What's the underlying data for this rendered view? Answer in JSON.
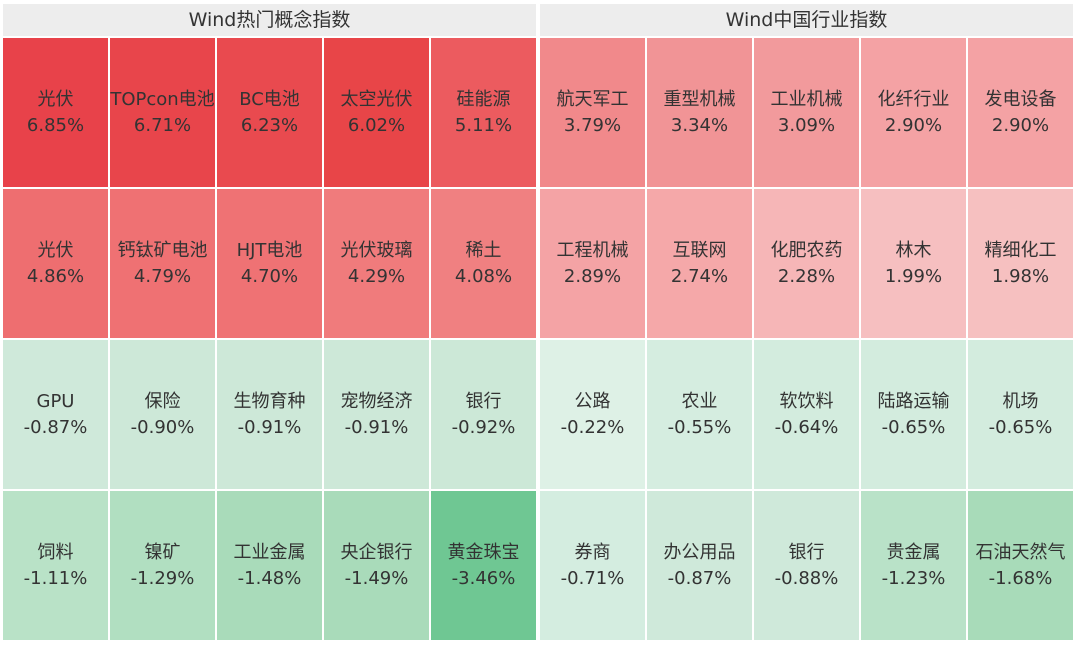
{
  "panels": [
    {
      "title": "Wind热门概念指数",
      "rows": [
        [
          {
            "name": "光伏",
            "change": "6.85%",
            "color": "#e8424a"
          },
          {
            "name": "TOPcon电池",
            "change": "6.71%",
            "color": "#e8454b"
          },
          {
            "name": "BC电池",
            "change": "6.23%",
            "color": "#e94a4f"
          },
          {
            "name": "太空光伏",
            "change": "6.02%",
            "color": "#e84548"
          },
          {
            "name": "硅能源",
            "change": "5.11%",
            "color": "#ec5b5f"
          }
        ],
        [
          {
            "name": "光伏",
            "change": "4.86%",
            "color": "#ee6e70"
          },
          {
            "name": "钙钛矿电池",
            "change": "4.79%",
            "color": "#ef7173"
          },
          {
            "name": "HJT电池",
            "change": "4.70%",
            "color": "#ef7274"
          },
          {
            "name": "光伏玻璃",
            "change": "4.29%",
            "color": "#f07b7c"
          },
          {
            "name": "稀土",
            "change": "4.08%",
            "color": "#f08081"
          }
        ],
        [
          {
            "name": "GPU",
            "change": "-0.87%",
            "color": "#cfe9da"
          },
          {
            "name": "保险",
            "change": "-0.90%",
            "color": "#cde8d8"
          },
          {
            "name": "生物育种",
            "change": "-0.91%",
            "color": "#cde8d8"
          },
          {
            "name": "宠物经济",
            "change": "-0.91%",
            "color": "#cde8d8"
          },
          {
            "name": "银行",
            "change": "-0.92%",
            "color": "#cce8d7"
          }
        ],
        [
          {
            "name": "饲料",
            "change": "-1.11%",
            "color": "#b9e2c7"
          },
          {
            "name": "镍矿",
            "change": "-1.29%",
            "color": "#b1dfc1"
          },
          {
            "name": "工业金属",
            "change": "-1.48%",
            "color": "#a9dbba"
          },
          {
            "name": "央企银行",
            "change": "-1.49%",
            "color": "#a9dbba"
          },
          {
            "name": "黄金珠宝",
            "change": "-3.46%",
            "color": "#6fc793"
          }
        ]
      ]
    },
    {
      "title": "Wind中国行业指数",
      "rows": [
        [
          {
            "name": "航天军工",
            "change": "3.79%",
            "color": "#f1898b"
          },
          {
            "name": "重型机械",
            "change": "3.34%",
            "color": "#f19496"
          },
          {
            "name": "工业机械",
            "change": "3.09%",
            "color": "#f29a9c"
          },
          {
            "name": "化纤行业",
            "change": "2.90%",
            "color": "#f4a2a4"
          },
          {
            "name": "发电设备",
            "change": "2.90%",
            "color": "#f4a2a4"
          }
        ],
        [
          {
            "name": "工程机械",
            "change": "2.89%",
            "color": "#f4a3a5"
          },
          {
            "name": "互联网",
            "change": "2.74%",
            "color": "#f5a8a9"
          },
          {
            "name": "化肥农药",
            "change": "2.28%",
            "color": "#f6b6b7"
          },
          {
            "name": "林木",
            "change": "1.99%",
            "color": "#f6bfc0"
          },
          {
            "name": "精细化工",
            "change": "1.98%",
            "color": "#f6c0c0"
          }
        ],
        [
          {
            "name": "公路",
            "change": "-0.22%",
            "color": "#def1e6"
          },
          {
            "name": "农业",
            "change": "-0.55%",
            "color": "#d5ede0"
          },
          {
            "name": "软饮料",
            "change": "-0.64%",
            "color": "#d3ecde"
          },
          {
            "name": "陆路运输",
            "change": "-0.65%",
            "color": "#d3ecde"
          },
          {
            "name": "机场",
            "change": "-0.65%",
            "color": "#d3ecde"
          }
        ],
        [
          {
            "name": "券商",
            "change": "-0.71%",
            "color": "#d4ede0"
          },
          {
            "name": "办公用品",
            "change": "-0.87%",
            "color": "#cfe9da"
          },
          {
            "name": "银行",
            "change": "-0.88%",
            "color": "#cfe9da"
          },
          {
            "name": "贵金属",
            "change": "-1.23%",
            "color": "#b9e2c8"
          },
          {
            "name": "石油天然气",
            "change": "-1.68%",
            "color": "#a8dbb9"
          }
        ]
      ]
    }
  ]
}
